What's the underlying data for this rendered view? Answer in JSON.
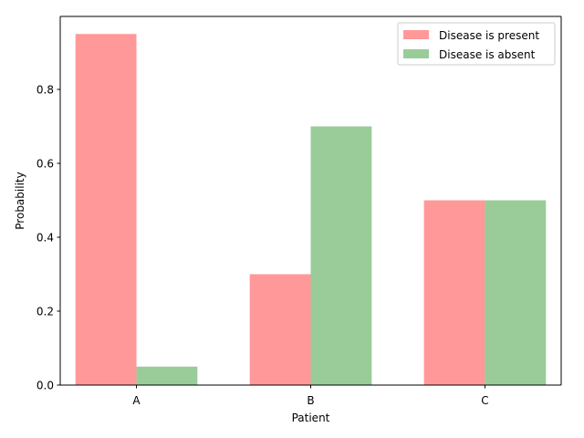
{
  "chart_data": {
    "type": "bar",
    "title": "",
    "xlabel": "Patient",
    "ylabel": "Probability",
    "categories": [
      "A",
      "B",
      "C"
    ],
    "series": [
      {
        "name": "Disease is present",
        "values": [
          0.95,
          0.3,
          0.5
        ],
        "color": "#ff9999"
      },
      {
        "name": "Disease is absent",
        "values": [
          0.05,
          0.7,
          0.5
        ],
        "color": "#99cc99"
      }
    ],
    "ylim": [
      0,
      0.9975
    ],
    "yticks": [
      0.0,
      0.2,
      0.4,
      0.6,
      0.8
    ],
    "ytick_labels": [
      "0.0",
      "0.2",
      "0.4",
      "0.6",
      "0.8"
    ],
    "grid": false,
    "legend_position": "top-right"
  }
}
